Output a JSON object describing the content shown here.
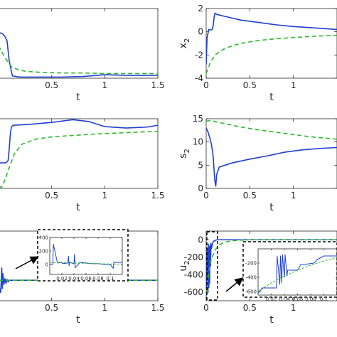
{
  "colors": {
    "blue": "#1f3fd0",
    "green": "#2eb82e",
    "axis": "#262626",
    "frame": "#000000"
  },
  "chart_data": [
    {
      "type": "line",
      "panel": "top-left",
      "xlabel": "t",
      "ylabel": "",
      "xlim": [
        0,
        1.5
      ],
      "ylim": [
        -3,
        3
      ],
      "xticks": [
        0.5,
        1,
        1.5
      ],
      "yticks": [],
      "series": [
        {
          "color": "blue",
          "style": "solid",
          "x": [
            0,
            0.02,
            0.04,
            0.06,
            0.08,
            0.1,
            0.13,
            0.2,
            0.4,
            0.6,
            0.8,
            1.0,
            1.2,
            1.4,
            1.5
          ],
          "y": [
            0.9,
            0.9,
            0.8,
            0.6,
            0.2,
            -1.5,
            -2.8,
            -2.9,
            -2.9,
            -2.9,
            -2.85,
            -2.7,
            -2.75,
            -2.75,
            -2.75
          ]
        },
        {
          "color": "green",
          "style": "dashed",
          "x": [
            0,
            0.04,
            0.08,
            0.12,
            0.18,
            0.25,
            0.4,
            0.6,
            0.8,
            1.0,
            1.2,
            1.5
          ],
          "y": [
            -0.2,
            -0.9,
            -1.5,
            -2.0,
            -2.25,
            -2.4,
            -2.5,
            -2.55,
            -2.55,
            -2.6,
            -2.6,
            -2.6
          ]
        }
      ]
    },
    {
      "type": "line",
      "panel": "top-right",
      "xlabel": "t",
      "ylabel": "x",
      "ylabel_subscript": "2",
      "xlim": [
        0,
        1.5
      ],
      "ylim": [
        -4,
        2
      ],
      "xticks": [
        0,
        0.5,
        1
      ],
      "yticks": [
        -4,
        -2,
        0,
        2
      ],
      "series": [
        {
          "color": "blue",
          "style": "solid",
          "x": [
            0,
            0.01,
            0.03,
            0.05,
            0.07,
            0.08,
            0.09,
            0.1,
            0.12,
            0.2,
            0.4,
            0.6,
            0.8,
            1.0,
            1.2,
            1.5
          ],
          "y": [
            -2.8,
            -0.5,
            0.2,
            0.15,
            0.2,
            0.5,
            1.2,
            1.6,
            1.5,
            1.35,
            1.0,
            0.8,
            0.6,
            0.45,
            0.35,
            0.2
          ]
        },
        {
          "color": "green",
          "style": "dashed",
          "x": [
            0,
            0.05,
            0.1,
            0.2,
            0.3,
            0.4,
            0.6,
            0.8,
            1.0,
            1.2,
            1.5
          ],
          "y": [
            -3.6,
            -2.6,
            -2.0,
            -1.5,
            -1.2,
            -1.0,
            -0.75,
            -0.6,
            -0.5,
            -0.4,
            -0.3
          ]
        }
      ]
    },
    {
      "type": "line",
      "panel": "middle-left",
      "xlabel": "t",
      "ylabel": "",
      "xlim": [
        0,
        1.5
      ],
      "ylim": [
        0,
        15
      ],
      "xticks": [
        0.5,
        1,
        1.5
      ],
      "yticks": [],
      "series": [
        {
          "color": "blue",
          "style": "solid",
          "x": [
            0,
            0.07,
            0.09,
            0.1,
            0.11,
            0.12,
            0.14,
            0.3,
            0.5,
            0.7,
            0.85,
            1.0,
            1.2,
            1.4,
            1.5
          ],
          "y": [
            5.5,
            5.5,
            6.0,
            8.5,
            11.5,
            13.2,
            13.6,
            13.8,
            14.2,
            14.8,
            14.4,
            13.3,
            13.0,
            13.2,
            13.6
          ]
        },
        {
          "color": "green",
          "style": "dashed",
          "x": [
            0,
            0.03,
            0.06,
            0.1,
            0.15,
            0.22,
            0.35,
            0.5,
            0.7,
            0.9,
            1.1,
            1.3,
            1.5
          ],
          "y": [
            0.3,
            0.3,
            1.8,
            4.5,
            7.5,
            9.5,
            10.6,
            11.1,
            11.4,
            11.7,
            11.9,
            12.1,
            12.3
          ]
        }
      ]
    },
    {
      "type": "line",
      "panel": "middle-right",
      "xlabel": "t",
      "ylabel": "s",
      "ylabel_subscript": "2",
      "xlim": [
        0,
        1.5
      ],
      "ylim": [
        0,
        15
      ],
      "xticks": [
        0,
        0.5,
        1
      ],
      "yticks": [
        0,
        5,
        10,
        15
      ],
      "series": [
        {
          "color": "blue",
          "style": "solid",
          "x": [
            0,
            0.02,
            0.04,
            0.06,
            0.08,
            0.09,
            0.1,
            0.11,
            0.12,
            0.15,
            0.3,
            0.5,
            0.7,
            0.9,
            1.1,
            1.3,
            1.5
          ],
          "y": [
            13,
            12.2,
            11.0,
            9.5,
            7.0,
            4.0,
            1.5,
            0.5,
            3.0,
            4.6,
            5.5,
            6.3,
            7.0,
            7.8,
            8.3,
            8.6,
            8.8
          ]
        },
        {
          "color": "green",
          "style": "dashed",
          "x": [
            0,
            0.05,
            0.1,
            0.2,
            0.3,
            0.4,
            0.6,
            0.8,
            1.0,
            1.2,
            1.5
          ],
          "y": [
            14.5,
            14.6,
            14.4,
            14.0,
            13.6,
            13.2,
            12.6,
            12.1,
            11.6,
            11.1,
            10.6
          ]
        }
      ]
    },
    {
      "type": "line",
      "panel": "bottom-left",
      "xlabel": "t",
      "ylabel": "",
      "xlim": [
        0,
        1.5
      ],
      "ylim": [
        -250,
        600
      ],
      "xticks": [
        0.5,
        1,
        1.5
      ],
      "yticks": [],
      "series": [
        {
          "color": "blue",
          "style": "solid",
          "x": [
            0,
            0.01,
            0.02,
            0.03,
            0.035,
            0.04,
            0.05,
            0.06,
            0.07,
            0.08,
            0.09,
            0.1,
            0.12,
            0.2,
            0.5,
            1.0,
            1.5
          ],
          "y": [
            -120,
            -100,
            -150,
            150,
            -100,
            80,
            -50,
            20,
            -40,
            10,
            -20,
            0,
            0,
            0,
            0,
            0,
            0
          ]
        },
        {
          "color": "green",
          "style": "dashed",
          "x": [
            0,
            0.05,
            0.1,
            0.2,
            0.5,
            1.0,
            1.5
          ],
          "y": [
            0,
            0,
            0,
            0,
            0,
            0,
            0
          ]
        }
      ]
    },
    {
      "type": "line",
      "panel": "bottom-left-inset",
      "xlabel": "",
      "ylabel": "",
      "xlim": [
        0,
        0.12
      ],
      "ylim": [
        -150,
        400
      ],
      "xticks": [
        0.02,
        0.04,
        0.06,
        0.08,
        0.1
      ],
      "xtick_labels": [
        "0.02",
        "0.04",
        "0.06",
        "0.08",
        "0.1"
      ],
      "yticks": [
        0,
        200,
        400
      ],
      "series": [
        {
          "color": "blue",
          "style": "solid",
          "x": [
            0,
            0.005,
            0.006,
            0.012,
            0.013,
            0.02,
            0.021,
            0.03,
            0.031,
            0.032,
            0.033,
            0.04,
            0.041,
            0.042,
            0.05,
            0.06,
            0.07,
            0.08,
            0.09,
            0.1,
            0.105,
            0.106,
            0.11,
            0.12
          ],
          "y": [
            0,
            0,
            300,
            50,
            20,
            30,
            10,
            20,
            120,
            -20,
            30,
            10,
            150,
            -50,
            30,
            20,
            10,
            10,
            0,
            0,
            -60,
            30,
            30,
            30
          ]
        },
        {
          "color": "green",
          "style": "dashed",
          "x": [
            0,
            0.02,
            0.04,
            0.06,
            0.08,
            0.1,
            0.12
          ],
          "y": [
            30,
            25,
            20,
            15,
            10,
            5,
            5
          ]
        }
      ]
    },
    {
      "type": "line",
      "panel": "bottom-right",
      "xlabel": "t",
      "ylabel": "u",
      "ylabel_subscript": "2",
      "xlim": [
        0,
        1.5
      ],
      "ylim": [
        -700,
        100
      ],
      "xticks": [
        0,
        0.5,
        1
      ],
      "yticks": [
        -600,
        -400,
        -200,
        0
      ],
      "series": [
        {
          "color": "blue",
          "style": "solid",
          "x": [
            0,
            0.01,
            0.02,
            0.025,
            0.03,
            0.035,
            0.04,
            0.045,
            0.05,
            0.055,
            0.06,
            0.08,
            0.1,
            0.12,
            0.2,
            0.5,
            1.0,
            1.5
          ],
          "y": [
            -650,
            -100,
            -600,
            -50,
            -550,
            -80,
            -500,
            -60,
            -300,
            -40,
            -100,
            -20,
            -10,
            0,
            0,
            0,
            0,
            0
          ]
        },
        {
          "color": "green",
          "style": "dashed",
          "x": [
            0,
            0.02,
            0.05,
            0.1,
            0.15,
            0.2,
            0.3,
            0.5,
            1.0,
            1.5
          ],
          "y": [
            -600,
            -450,
            -250,
            -120,
            -60,
            -30,
            -10,
            0,
            0,
            0
          ]
        }
      ]
    },
    {
      "type": "line",
      "panel": "bottom-right-inset",
      "xlabel": "",
      "ylabel": "",
      "xlim": [
        0,
        0.12
      ],
      "ylim": [
        -650,
        0
      ],
      "xticks": [
        0.02,
        0.04,
        0.06,
        0.08,
        0.1
      ],
      "xtick_labels": [
        "0.02",
        "0.04",
        "0.06",
        "0.08",
        "0.1"
      ],
      "yticks": [
        -600,
        -400,
        -200
      ],
      "series": [
        {
          "color": "blue",
          "style": "solid",
          "x": [
            0,
            0.003,
            0.006,
            0.012,
            0.02,
            0.028,
            0.029,
            0.033,
            0.034,
            0.036,
            0.037,
            0.04,
            0.041,
            0.044,
            0.045,
            0.048,
            0.055,
            0.06,
            0.065,
            0.07,
            0.085,
            0.09,
            0.1,
            0.105,
            0.12
          ],
          "y": [
            -620,
            -600,
            -550,
            -550,
            -550,
            -550,
            -100,
            -500,
            -100,
            -480,
            -80,
            -400,
            -80,
            -380,
            -300,
            -300,
            -300,
            -300,
            -220,
            -220,
            -200,
            -150,
            -100,
            -100,
            -100
          ]
        },
        {
          "color": "green",
          "style": "dashed",
          "x": [
            0,
            0.02,
            0.04,
            0.06,
            0.08,
            0.1,
            0.12
          ],
          "y": [
            -600,
            -480,
            -380,
            -300,
            -230,
            -170,
            -120
          ]
        }
      ]
    }
  ]
}
